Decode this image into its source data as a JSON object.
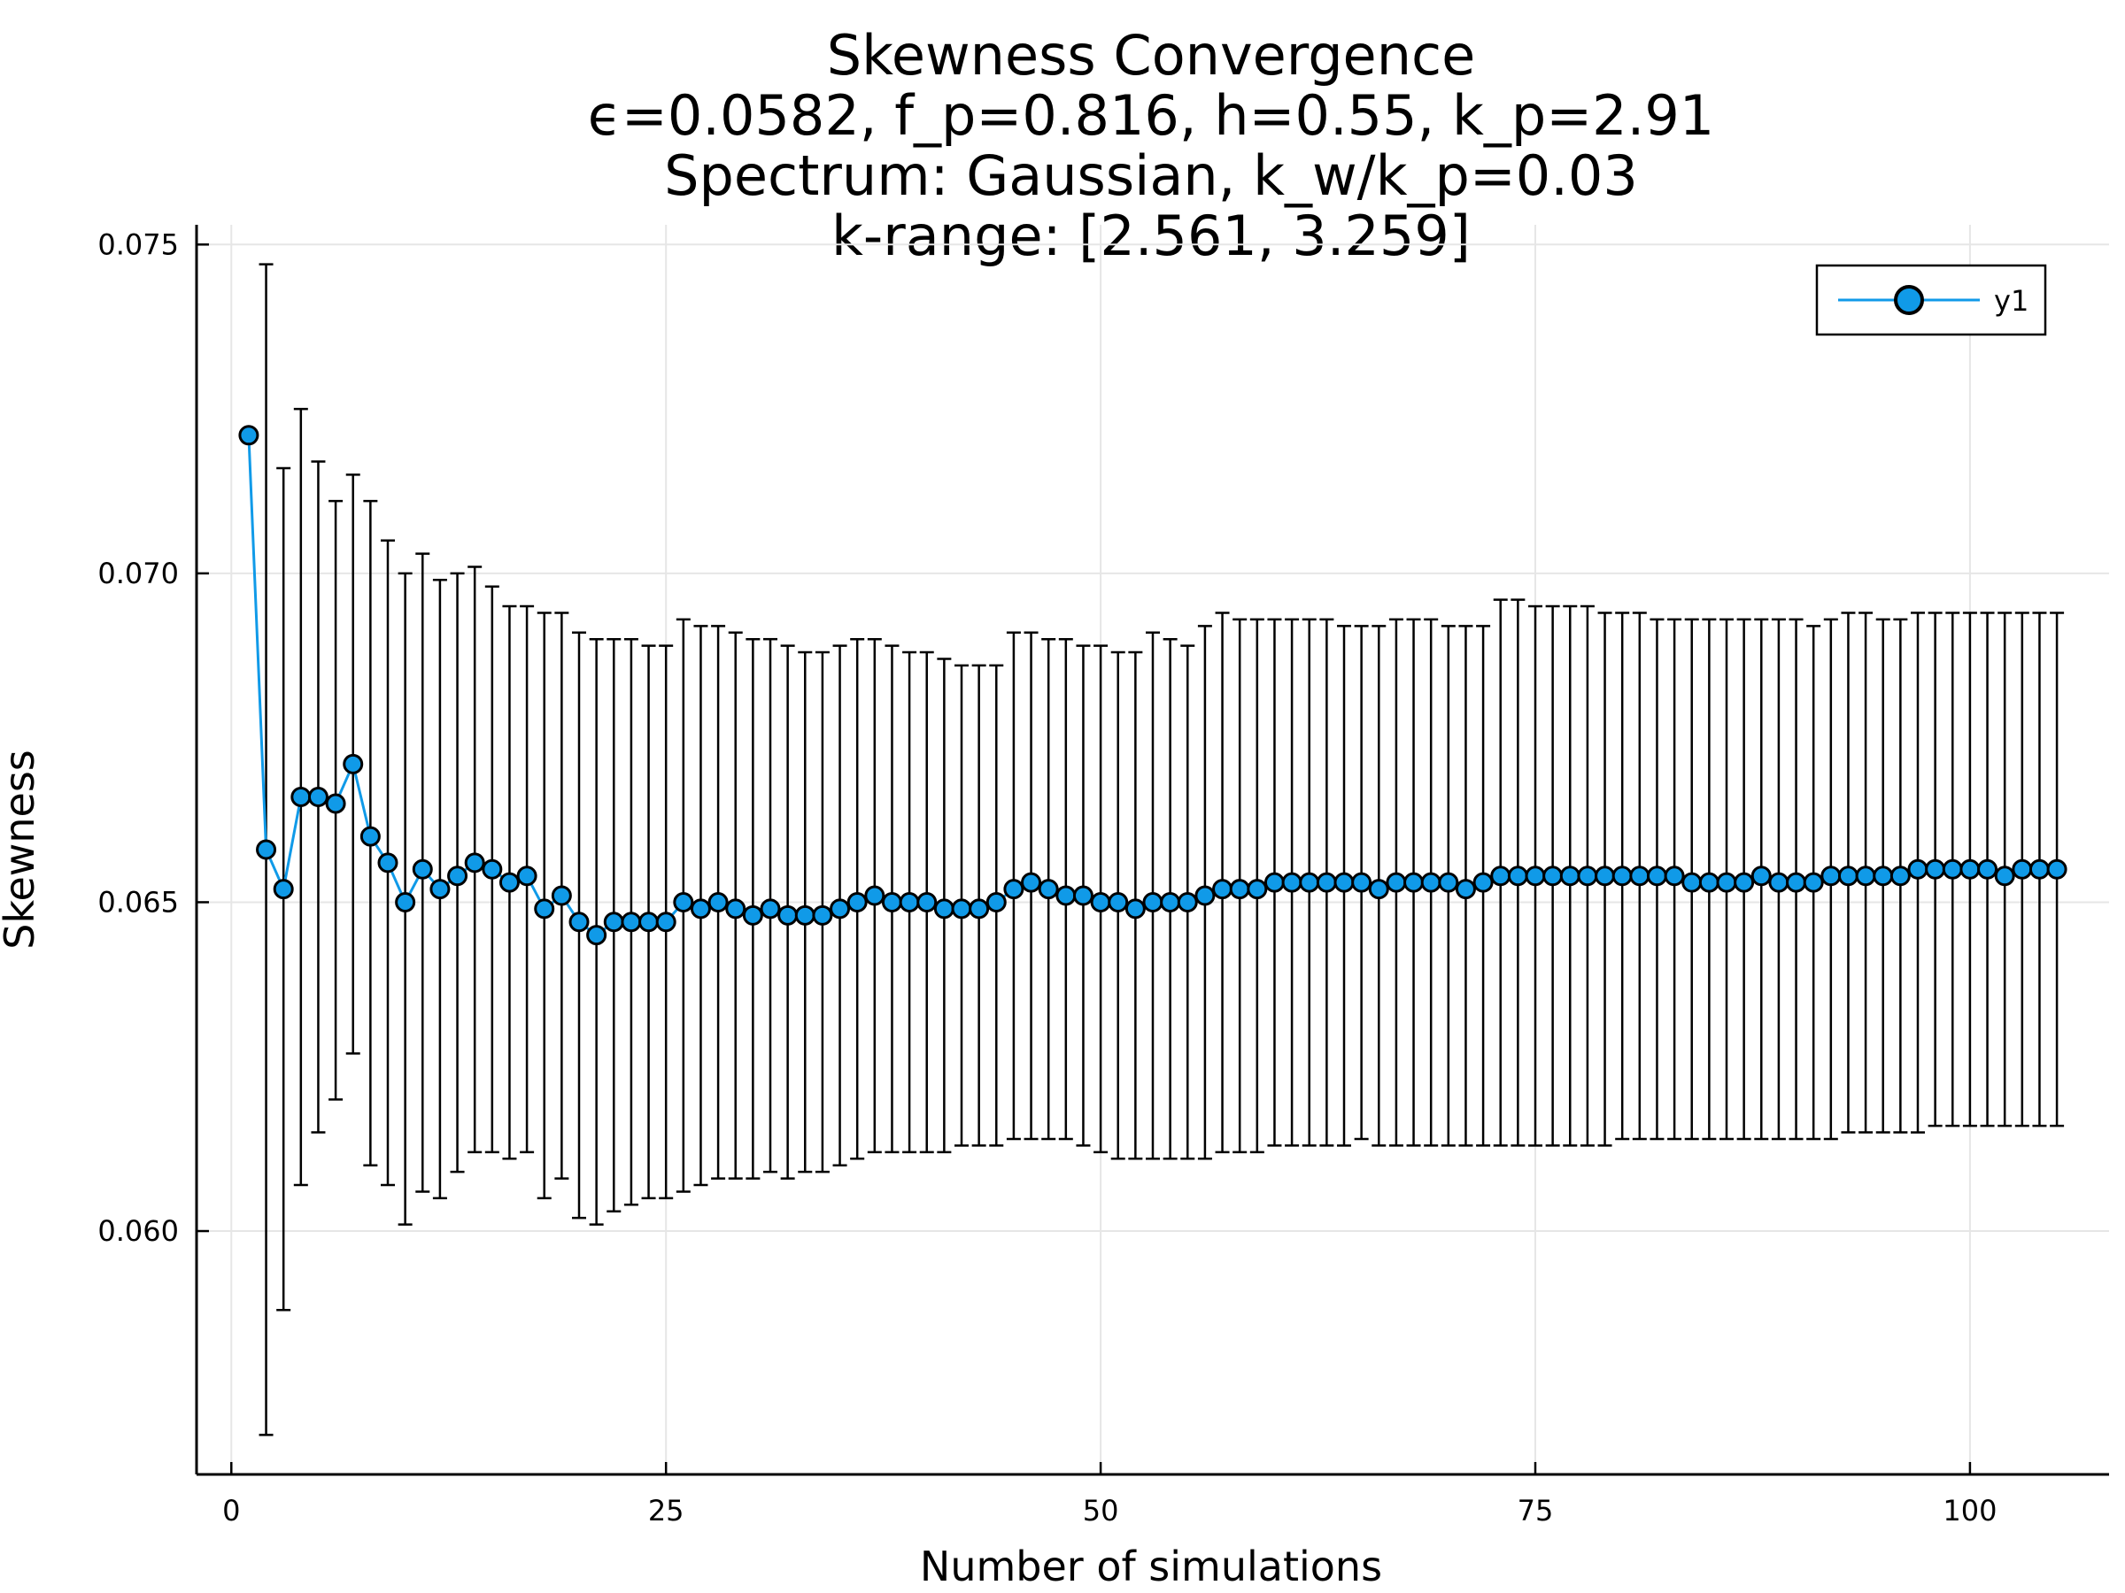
{
  "chart_data": {
    "type": "scatter",
    "title_lines": [
      "Skewness Convergence",
      "ϵ=0.0582, f_p=0.816, h=0.55, k_p=2.91",
      "Spectrum: Gaussian, k_w/k_p=0.03",
      "k-range: [2.561, 3.259]"
    ],
    "xlabel": "Number of simulations",
    "ylabel": "Skewness",
    "xlim": [
      -2,
      108
    ],
    "ylim": [
      0.0563,
      0.0753
    ],
    "xticks": [
      0,
      25,
      50,
      75,
      100
    ],
    "xtick_labels": [
      "0",
      "25",
      "50",
      "75",
      "100"
    ],
    "yticks": [
      0.06,
      0.065,
      0.07,
      0.075
    ],
    "ytick_labels": [
      "0.060",
      "0.065",
      "0.070",
      "0.075"
    ],
    "grid": true,
    "legend": {
      "position": "top-right",
      "entries": [
        "y1"
      ]
    },
    "colors": {
      "series": "#109ae8",
      "error_bars": "#000000",
      "grid": "#e6e6e6"
    },
    "series": [
      {
        "name": "y1",
        "x": [
          1,
          2,
          3,
          4,
          5,
          6,
          7,
          8,
          9,
          10,
          11,
          12,
          13,
          14,
          15,
          16,
          17,
          18,
          19,
          20,
          21,
          22,
          23,
          24,
          25,
          26,
          27,
          28,
          29,
          30,
          31,
          32,
          33,
          34,
          35,
          36,
          37,
          38,
          39,
          40,
          41,
          42,
          43,
          44,
          45,
          46,
          47,
          48,
          49,
          50,
          51,
          52,
          53,
          54,
          55,
          56,
          57,
          58,
          59,
          60,
          61,
          62,
          63,
          64,
          65,
          66,
          67,
          68,
          69,
          70,
          71,
          72,
          73,
          74,
          75,
          76,
          77,
          78,
          79,
          80,
          81,
          82,
          83,
          84,
          85,
          86,
          87,
          88,
          89,
          90,
          91,
          92,
          93,
          94,
          95,
          96,
          97,
          98,
          99,
          100,
          101,
          102,
          103,
          104,
          105
        ],
        "y": [
          0.0721,
          0.0658,
          0.0652,
          0.0666,
          0.0666,
          0.0665,
          0.0671,
          0.066,
          0.0656,
          0.065,
          0.0655,
          0.0652,
          0.0654,
          0.0656,
          0.0655,
          0.0653,
          0.0654,
          0.0649,
          0.0651,
          0.0647,
          0.0645,
          0.0647,
          0.0647,
          0.0647,
          0.0647,
          0.065,
          0.0649,
          0.065,
          0.0649,
          0.0648,
          0.0649,
          0.0648,
          0.0648,
          0.0648,
          0.0649,
          0.065,
          0.0651,
          0.065,
          0.065,
          0.065,
          0.0649,
          0.0649,
          0.0649,
          0.065,
          0.0652,
          0.0653,
          0.0652,
          0.0651,
          0.0651,
          0.065,
          0.065,
          0.0649,
          0.065,
          0.065,
          0.065,
          0.0651,
          0.0652,
          0.0652,
          0.0652,
          0.0653,
          0.0653,
          0.0653,
          0.0653,
          0.0653,
          0.0653,
          0.0652,
          0.0653,
          0.0653,
          0.0653,
          0.0653,
          0.0652,
          0.0653,
          0.0654,
          0.0654,
          0.0654,
          0.0654,
          0.0654,
          0.0654,
          0.0654,
          0.0654,
          0.0654,
          0.0654,
          0.0654,
          0.0653,
          0.0653,
          0.0653,
          0.0653,
          0.0654,
          0.0653,
          0.0653,
          0.0653,
          0.0654,
          0.0654,
          0.0654,
          0.0654,
          0.0654,
          0.0655,
          0.0655,
          0.0655,
          0.0655,
          0.0655,
          0.0654,
          0.0655,
          0.0655,
          0.0655
        ],
        "yerr_low": [
          null,
          0.0569,
          0.0588,
          0.0607,
          0.0615,
          0.062,
          0.0627,
          0.061,
          0.0607,
          0.0601,
          0.0606,
          0.0605,
          0.0609,
          0.0612,
          0.0612,
          0.0611,
          0.0612,
          0.0605,
          0.0608,
          0.0602,
          0.0601,
          0.0603,
          0.0604,
          0.0605,
          0.0605,
          0.0606,
          0.0607,
          0.0608,
          0.0608,
          0.0608,
          0.0609,
          0.0608,
          0.0609,
          0.0609,
          0.061,
          0.0611,
          0.0612,
          0.0612,
          0.0612,
          0.0612,
          0.0612,
          0.0613,
          0.0613,
          0.0613,
          0.0614,
          0.0614,
          0.0614,
          0.0614,
          0.0613,
          0.0612,
          0.0611,
          0.0611,
          0.0611,
          0.0611,
          0.0611,
          0.0611,
          0.0612,
          0.0612,
          0.0612,
          0.0613,
          0.0613,
          0.0613,
          0.0613,
          0.0613,
          0.0614,
          0.0613,
          0.0613,
          0.0613,
          0.0613,
          0.0613,
          0.0613,
          0.0613,
          0.0613,
          0.0613,
          0.0613,
          0.0613,
          0.0613,
          0.0613,
          0.0613,
          0.0614,
          0.0614,
          0.0614,
          0.0614,
          0.0614,
          0.0614,
          0.0614,
          0.0614,
          0.0614,
          0.0614,
          0.0614,
          0.0614,
          0.0614,
          0.0615,
          0.0615,
          0.0615,
          0.0615,
          0.0615,
          0.0616,
          0.0616,
          0.0616,
          0.0616,
          0.0616,
          0.0616,
          0.0616,
          0.0616
        ],
        "yerr_high": [
          null,
          0.0747,
          0.0716,
          0.0725,
          0.0717,
          0.0711,
          0.0715,
          0.0711,
          0.0705,
          0.07,
          0.0703,
          0.0699,
          0.07,
          0.0701,
          0.0698,
          0.0695,
          0.0695,
          0.0694,
          0.0694,
          0.0691,
          0.069,
          0.069,
          0.069,
          0.0689,
          0.0689,
          0.0693,
          0.0692,
          0.0692,
          0.0691,
          0.069,
          0.069,
          0.0689,
          0.0688,
          0.0688,
          0.0689,
          0.069,
          0.069,
          0.0689,
          0.0688,
          0.0688,
          0.0687,
          0.0686,
          0.0686,
          0.0686,
          0.0691,
          0.0691,
          0.069,
          0.069,
          0.0689,
          0.0689,
          0.0688,
          0.0688,
          0.0691,
          0.069,
          0.0689,
          0.0692,
          0.0694,
          0.0693,
          0.0693,
          0.0693,
          0.0693,
          0.0693,
          0.0693,
          0.0692,
          0.0692,
          0.0692,
          0.0693,
          0.0693,
          0.0693,
          0.0692,
          0.0692,
          0.0692,
          0.0696,
          0.0696,
          0.0695,
          0.0695,
          0.0695,
          0.0695,
          0.0694,
          0.0694,
          0.0694,
          0.0693,
          0.0693,
          0.0693,
          0.0693,
          0.0693,
          0.0693,
          0.0693,
          0.0693,
          0.0693,
          0.0692,
          0.0693,
          0.0694,
          0.0694,
          0.0693,
          0.0693,
          0.0694,
          0.0694,
          0.0694,
          0.0694,
          0.0694,
          0.0694,
          0.0694,
          0.0694,
          0.0694
        ]
      }
    ]
  }
}
